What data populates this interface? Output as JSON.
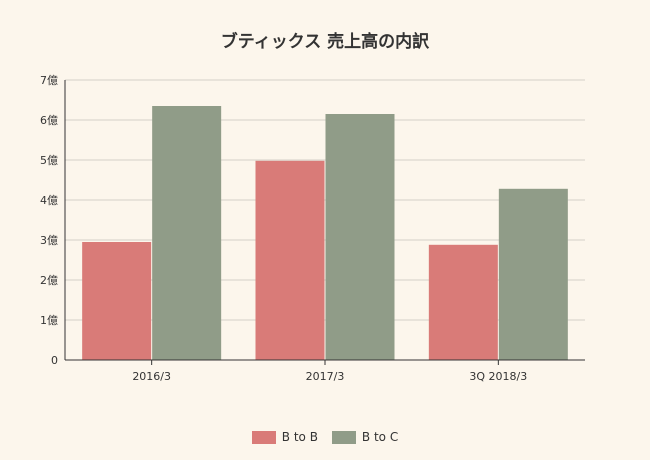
{
  "chart_data": {
    "type": "bar",
    "title": "ブティックス 売上高の内訳",
    "categories": [
      "2016/3",
      "2017/3",
      "3Q 2018/3"
    ],
    "series": [
      {
        "name": "B to B",
        "values": [
          2.95,
          4.98,
          2.88
        ],
        "color": "#d97b78"
      },
      {
        "name": "B to C",
        "values": [
          6.35,
          6.15,
          4.28
        ],
        "color": "#909c88"
      }
    ],
    "ylim": [
      0,
      7
    ],
    "yticks": [
      "0",
      "1億",
      "2億",
      "3億",
      "4億",
      "5億",
      "6億",
      "7億"
    ],
    "grid": true,
    "legend_position": "bottom"
  }
}
